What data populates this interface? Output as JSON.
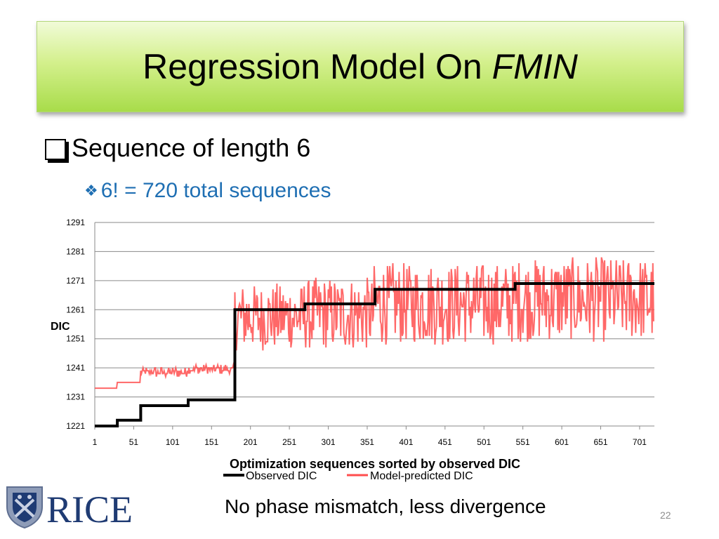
{
  "slide": {
    "title_prefix": "Regression Model On ",
    "title_em": "FMIN",
    "bullet1": "Sequence of length 6",
    "bullet2": "6! = 720 total sequences",
    "footer_note": "No phase mismatch, less divergence",
    "page_number": "22",
    "logo_text": "RICE",
    "icons": {
      "bullet1": "checkbox-square-icon",
      "bullet2": "four-diamond-icon"
    }
  },
  "chart_data": {
    "type": "line",
    "title": "",
    "xlabel": "Optimization sequences sorted by observed DIC",
    "ylabel": "DIC",
    "xlim": [
      1,
      720
    ],
    "ylim": [
      1221,
      1291
    ],
    "yticks": [
      1221,
      1231,
      1241,
      1251,
      1261,
      1271,
      1281,
      1291
    ],
    "xticks": [
      1,
      51,
      101,
      151,
      201,
      251,
      301,
      351,
      401,
      451,
      501,
      551,
      601,
      651,
      701
    ],
    "grid": "horizontal",
    "legend": "bottom",
    "series": [
      {
        "name": "Observed DIC",
        "color": "#000000",
        "steps": [
          [
            1,
            1221
          ],
          [
            30,
            1223
          ],
          [
            60,
            1228
          ],
          [
            121,
            1230
          ],
          [
            181,
            1261
          ],
          [
            271,
            1263
          ],
          [
            361,
            1268
          ],
          [
            541,
            1270
          ],
          [
            720,
            1270
          ]
        ]
      },
      {
        "name": "Model-predicted DIC",
        "color": "#ff4d4d",
        "segments": [
          {
            "from": 1,
            "to": 30,
            "value": 1234
          },
          {
            "from": 30,
            "to": 60,
            "value": 1236
          },
          {
            "from": 60,
            "to": 120,
            "min": 1238,
            "max": 1241
          },
          {
            "from": 120,
            "to": 181,
            "min": 1239,
            "max": 1242
          },
          {
            "from": 181,
            "to": 270,
            "min": 1247,
            "max": 1270
          },
          {
            "from": 270,
            "to": 360,
            "min": 1247,
            "max": 1272
          },
          {
            "from": 360,
            "to": 540,
            "min": 1249,
            "max": 1277
          },
          {
            "from": 540,
            "to": 720,
            "min": 1250,
            "max": 1279
          }
        ]
      }
    ]
  }
}
